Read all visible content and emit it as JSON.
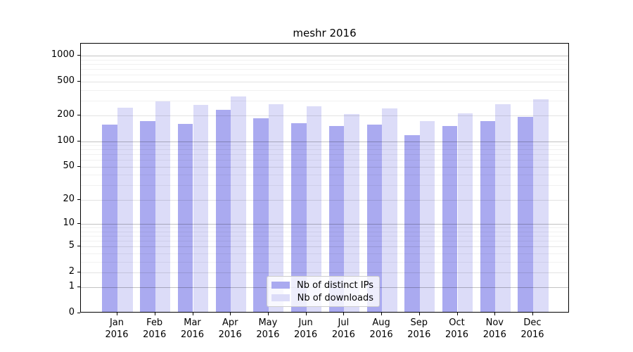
{
  "title": "meshr 2016",
  "colors": {
    "bar_distinct_ips": "#aaaaf0",
    "bar_downloads": "#dcdcf8",
    "grid_decade": "rgba(0,0,0,0.24)",
    "grid_tick": "rgba(0,0,0,0.11)",
    "grid_minor": "rgba(0,0,0,0.055)",
    "axis": "#000000",
    "legend_border": "#cccccc"
  },
  "legend": {
    "items": [
      {
        "label": "Nb of distinct IPs",
        "color": "#aaaaf0"
      },
      {
        "label": "Nb of downloads",
        "color": "#dcdcf8"
      }
    ]
  },
  "axes": {
    "y_tick_labels": [
      "1000",
      "500",
      "200",
      "100",
      "50",
      "20",
      "10",
      "5",
      "2",
      "1",
      "0"
    ],
    "y_tick_values": [
      1000,
      500,
      200,
      100,
      50,
      20,
      10,
      5,
      2,
      1,
      0
    ],
    "x_tick_year": "2016"
  },
  "chart_data": {
    "type": "bar",
    "title": "meshr 2016",
    "xlabel": "",
    "ylabel": "",
    "categories": [
      "Jan",
      "Feb",
      "Mar",
      "Apr",
      "May",
      "Jun",
      "Jul",
      "Aug",
      "Sep",
      "Oct",
      "Nov",
      "Dec"
    ],
    "category_year": "2016",
    "series": [
      {
        "name": "Nb of distinct IPs",
        "color": "#aaaaf0",
        "values": [
          150,
          165,
          155,
          225,
          180,
          158,
          145,
          150,
          113,
          145,
          165,
          185
        ]
      },
      {
        "name": "Nb of downloads",
        "color": "#dcdcf8",
        "values": [
          240,
          285,
          255,
          325,
          260,
          250,
          200,
          235,
          165,
          205,
          260,
          300
        ]
      }
    ],
    "yscale": "log10(value+1)",
    "y_ticks": [
      0,
      1,
      2,
      5,
      10,
      20,
      50,
      100,
      200,
      500,
      1000
    ],
    "ylim": [
      0,
      1400
    ],
    "grid": true,
    "grid_above_bars": true,
    "legend_position": "lower center"
  }
}
